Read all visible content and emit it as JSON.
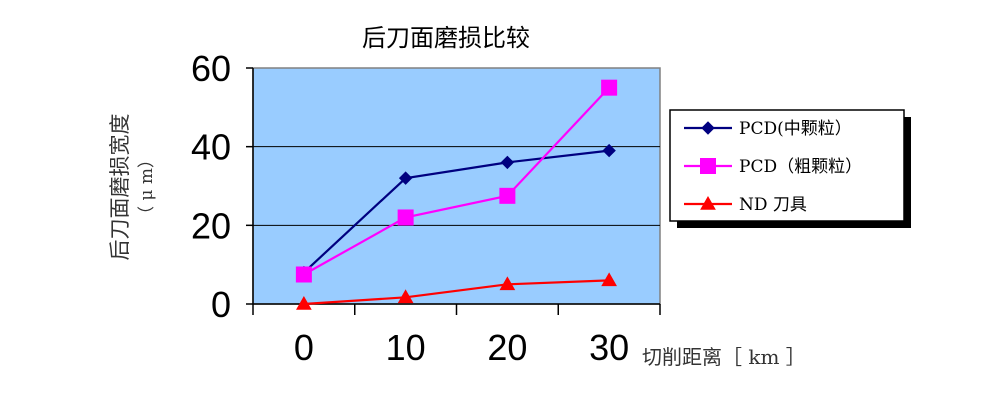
{
  "chart_data": {
    "type": "line",
    "title": "后刀面磨损比较",
    "xlabel": "切削距离［ km ］",
    "ylabel_main": "后刀面磨损宽度",
    "ylabel_unit": "（ μ m）",
    "categories": [
      "0",
      "10",
      "20",
      "30"
    ],
    "x": [
      0,
      10,
      20,
      30
    ],
    "ylim": [
      0,
      60
    ],
    "yticks": [
      "0",
      "20",
      "40",
      "60"
    ],
    "grid": "horizontal",
    "legend_position": "right",
    "series": [
      {
        "name": "PCD(中颗粒）",
        "color": "#000080",
        "marker": "diamond",
        "values": [
          8,
          32,
          36,
          39
        ]
      },
      {
        "name": "PCD（粗颗粒）",
        "color": "#ff00ff",
        "marker": "square",
        "values": [
          7.5,
          22,
          27.5,
          55
        ]
      },
      {
        "name": "ND  刀具",
        "color": "#ff0000",
        "marker": "triangle",
        "values": [
          0,
          1.7,
          5,
          6
        ]
      }
    ]
  },
  "colors": {
    "plot_background": "#99ccff",
    "gridline": "#000000"
  }
}
